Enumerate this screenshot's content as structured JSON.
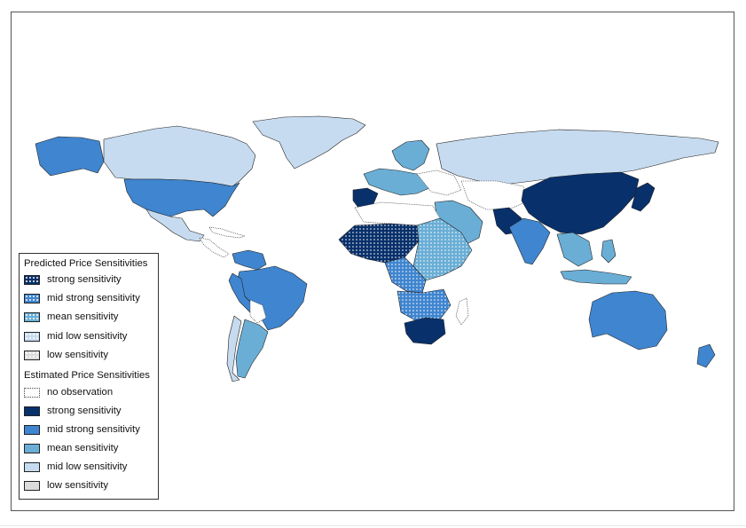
{
  "map": {
    "colors": {
      "strong": "#08306b",
      "mid_strong": "#3f85cf",
      "mean": "#6aaed6",
      "mid_low": "#c6dbef",
      "low": "#dcdcdc",
      "none": "#ffffff",
      "border": "#222222"
    }
  },
  "legend": {
    "predicted": {
      "title": "Predicted Price Sensitivities",
      "items": [
        {
          "label": "strong sensitivity",
          "color": "#08306b",
          "pattern": "dots"
        },
        {
          "label": "mid strong sensitivity",
          "color": "#3f85cf",
          "pattern": "dots"
        },
        {
          "label": "mean sensitivity",
          "color": "#6aaed6",
          "pattern": "dots"
        },
        {
          "label": "mid low sensitivity",
          "color": "#c6dbef",
          "pattern": "dots"
        },
        {
          "label": "low sensitivity",
          "color": "#dcdcdc",
          "pattern": "dots"
        }
      ]
    },
    "estimated": {
      "title": "Estimated Price Sensitivities",
      "items": [
        {
          "label": "no observation",
          "color": "#ffffff",
          "pattern": "dotted-border"
        },
        {
          "label": "strong sensitivity",
          "color": "#08306b",
          "pattern": "solid"
        },
        {
          "label": "mid strong sensitivity",
          "color": "#3f85cf",
          "pattern": "solid"
        },
        {
          "label": "mean sensitivity",
          "color": "#6aaed6",
          "pattern": "solid"
        },
        {
          "label": "mid low sensitivity",
          "color": "#c6dbef",
          "pattern": "solid"
        },
        {
          "label": "low sensitivity",
          "color": "#dcdcdc",
          "pattern": "solid"
        }
      ]
    }
  }
}
